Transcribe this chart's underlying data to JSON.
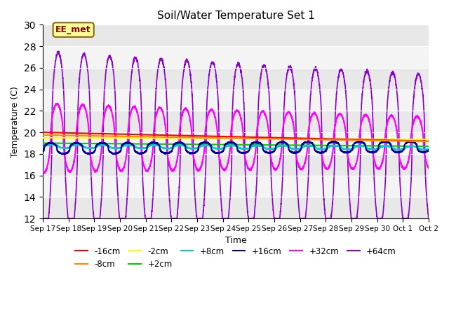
{
  "title": "Soil/Water Temperature Set 1",
  "xlabel": "Time",
  "ylabel": "Temperature (C)",
  "ylim": [
    12,
    30
  ],
  "background_color": "#ffffff",
  "label_box_text": "EE_met",
  "label_box_bg": "#ffff99",
  "label_box_border": "#8B6914",
  "tick_labels": [
    "Sep 17",
    "Sep 18",
    "Sep 19",
    "Sep 20",
    "Sep 21",
    "Sep 22",
    "Sep 23",
    "Sep 24",
    "Sep 25",
    "Sep 26",
    "Sep 27",
    "Sep 28",
    "Sep 29",
    "Sep 30",
    "Oct 1",
    "Oct 2"
  ],
  "series_colors": {
    "-16cm": "#ff0000",
    "-8cm": "#ff8800",
    "-2cm": "#ffff00",
    "+2cm": "#00cc00",
    "+8cm": "#00cccc",
    "+16cm": "#000099",
    "+32cm": "#ff00ff",
    "+64cm": "#8800cc"
  },
  "stripe_colors": [
    "#e8e8e8",
    "#f4f4f4"
  ],
  "yticks": [
    12,
    14,
    16,
    18,
    20,
    22,
    24,
    26,
    28,
    30
  ]
}
